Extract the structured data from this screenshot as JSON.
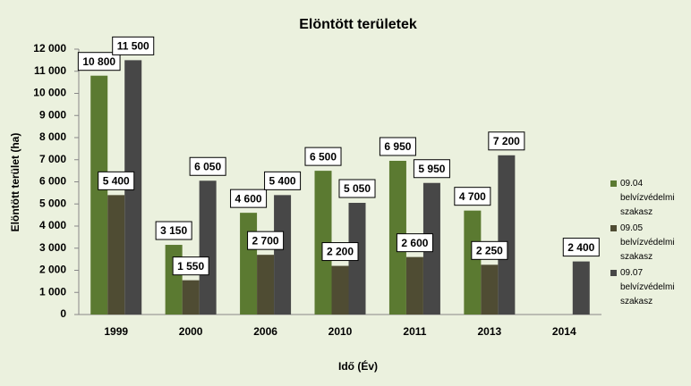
{
  "chart_data": {
    "type": "bar",
    "title": "Elöntött területek",
    "x_label": "Idő (Év)",
    "y_label": "Elöntött terület (ha)",
    "categories": [
      "1999",
      "2000",
      "2006",
      "2010",
      "2011",
      "2013",
      "2014"
    ],
    "series": [
      {
        "name": "09.04 belvízvédelmi szakasz",
        "color": "#5b7a31",
        "values": [
          10800,
          3150,
          4600,
          6500,
          6950,
          4700,
          null
        ],
        "value_labels": [
          "10 800",
          "3 150",
          "4 600",
          "6 500",
          "6 950",
          "4 700",
          null
        ]
      },
      {
        "name": "09.05 belvízvédelmi szakasz",
        "color": "#4f4c33",
        "values": [
          5400,
          1550,
          2700,
          2200,
          2600,
          2250,
          null
        ],
        "value_labels": [
          "5 400",
          "1 550",
          "2 700",
          "2 200",
          "2 600",
          "2 250",
          null
        ]
      },
      {
        "name": "09.07 belvízvédelmi szakasz",
        "color": "#474747",
        "values": [
          11500,
          6050,
          5400,
          5050,
          5950,
          7200,
          2400
        ],
        "value_labels": [
          "11 500",
          "6 050",
          "5 400",
          "5 050",
          "5 950",
          "7 200",
          "2 400"
        ]
      }
    ],
    "ylim": [
      0,
      12000
    ],
    "yticks": [
      0,
      {
        "value": 1000,
        "label": "1 000"
      },
      {
        "value": 2000,
        "label": "2 000"
      },
      {
        "value": 3000,
        "label": "3 000"
      },
      {
        "value": 4000,
        "label": "4 000"
      },
      {
        "value": 5000,
        "label": "5 000"
      },
      {
        "value": 6000,
        "label": "6 000"
      },
      {
        "value": 7000,
        "label": "7 000"
      },
      {
        "value": 8000,
        "label": "8 000"
      },
      {
        "value": 9000,
        "label": "9 000"
      },
      {
        "value": 10000,
        "label": "10 000"
      },
      {
        "value": 11000,
        "label": "11 000"
      },
      {
        "value": 12000,
        "label": "12 000"
      }
    ],
    "grid": false,
    "legend": "right"
  }
}
